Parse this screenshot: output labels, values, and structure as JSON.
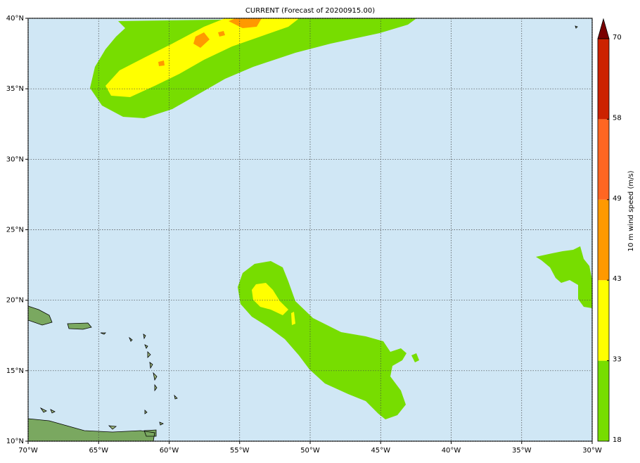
{
  "map": {
    "title": "CURRENT (Forecast of 20200915.00)",
    "lonlim": [
      -70,
      -30
    ],
    "latlim": [
      10,
      40
    ],
    "xticks": [
      {
        "value": -70,
        "label": "70°W"
      },
      {
        "value": -65,
        "label": "65°W"
      },
      {
        "value": -60,
        "label": "60°W"
      },
      {
        "value": -55,
        "label": "55°W"
      },
      {
        "value": -50,
        "label": "50°W"
      },
      {
        "value": -45,
        "label": "45°W"
      },
      {
        "value": -40,
        "label": "40°W"
      },
      {
        "value": -35,
        "label": "35°W"
      },
      {
        "value": -30,
        "label": "30°W"
      }
    ],
    "yticks": [
      {
        "value": 10,
        "label": "10°N"
      },
      {
        "value": 15,
        "label": "15°N"
      },
      {
        "value": 20,
        "label": "20°N"
      },
      {
        "value": 25,
        "label": "25°N"
      },
      {
        "value": 30,
        "label": "30°N"
      },
      {
        "value": 35,
        "label": "35°N"
      },
      {
        "value": 40,
        "label": "40°N"
      }
    ],
    "grid": true,
    "colorbar": {
      "label": "10 m wind speed (m/s)",
      "levels": [
        18,
        33,
        43,
        49,
        58,
        70
      ],
      "colors": [
        "#77dd00",
        "#ffff00",
        "#ff9900",
        "#ff6622",
        "#cc2200"
      ],
      "extend_color": "#7a0000"
    }
  }
}
